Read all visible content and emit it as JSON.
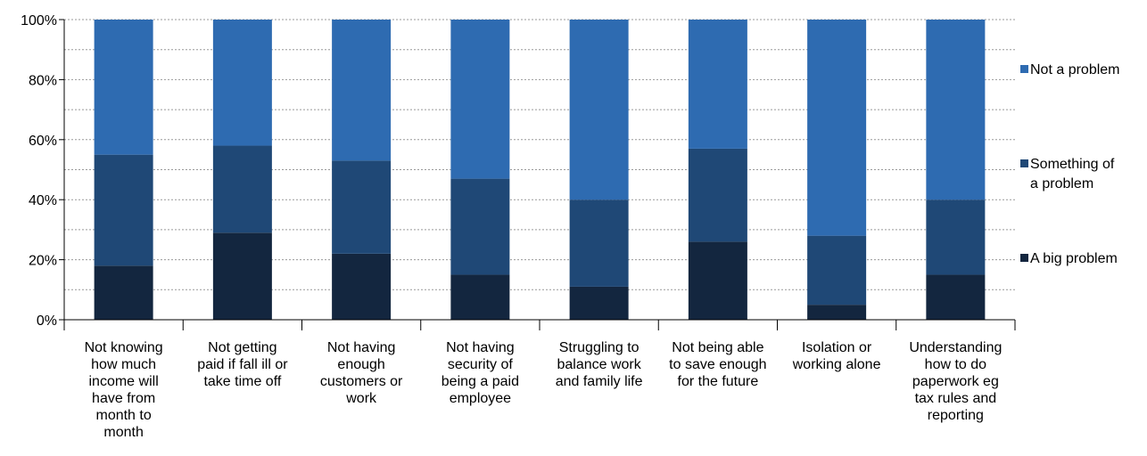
{
  "chart_data": {
    "type": "bar",
    "stacked": true,
    "percent": true,
    "categories": [
      [
        "Not knowing",
        "how much",
        "income will",
        "have from",
        "month to",
        "month"
      ],
      [
        "Not getting",
        "paid if fall ill or",
        "take time off"
      ],
      [
        "Not having",
        "enough",
        "customers or",
        "work"
      ],
      [
        "Not having",
        "security of",
        "being a paid",
        "employee"
      ],
      [
        "Struggling to",
        "balance work",
        "and family life"
      ],
      [
        "Not being able",
        "to save enough",
        "for the future"
      ],
      [
        "Isolation or",
        "working alone"
      ],
      [
        "Understanding",
        "how to do",
        "paperwork eg",
        "tax rules and",
        "reporting"
      ]
    ],
    "series": [
      {
        "name": "A big problem",
        "color": "#13263f",
        "values": [
          18,
          29,
          22,
          15,
          11,
          26,
          5,
          15
        ]
      },
      {
        "name": "Something of a problem",
        "color": "#1f4876",
        "values": [
          37,
          29,
          31,
          32,
          29,
          31,
          23,
          25
        ]
      },
      {
        "name": "Not a problem",
        "color": "#2e6bb1",
        "values": [
          45,
          42,
          47,
          53,
          60,
          43,
          72,
          60
        ]
      }
    ],
    "legend": [
      [
        "Not a problem"
      ],
      [
        "Something of",
        "a problem"
      ],
      [
        "A big problem"
      ]
    ],
    "yticks": [
      "0%",
      "20%",
      "40%",
      "60%",
      "80%",
      "100%"
    ],
    "ylim": [
      0,
      100
    ],
    "grid": true,
    "legend_placement": "right"
  }
}
